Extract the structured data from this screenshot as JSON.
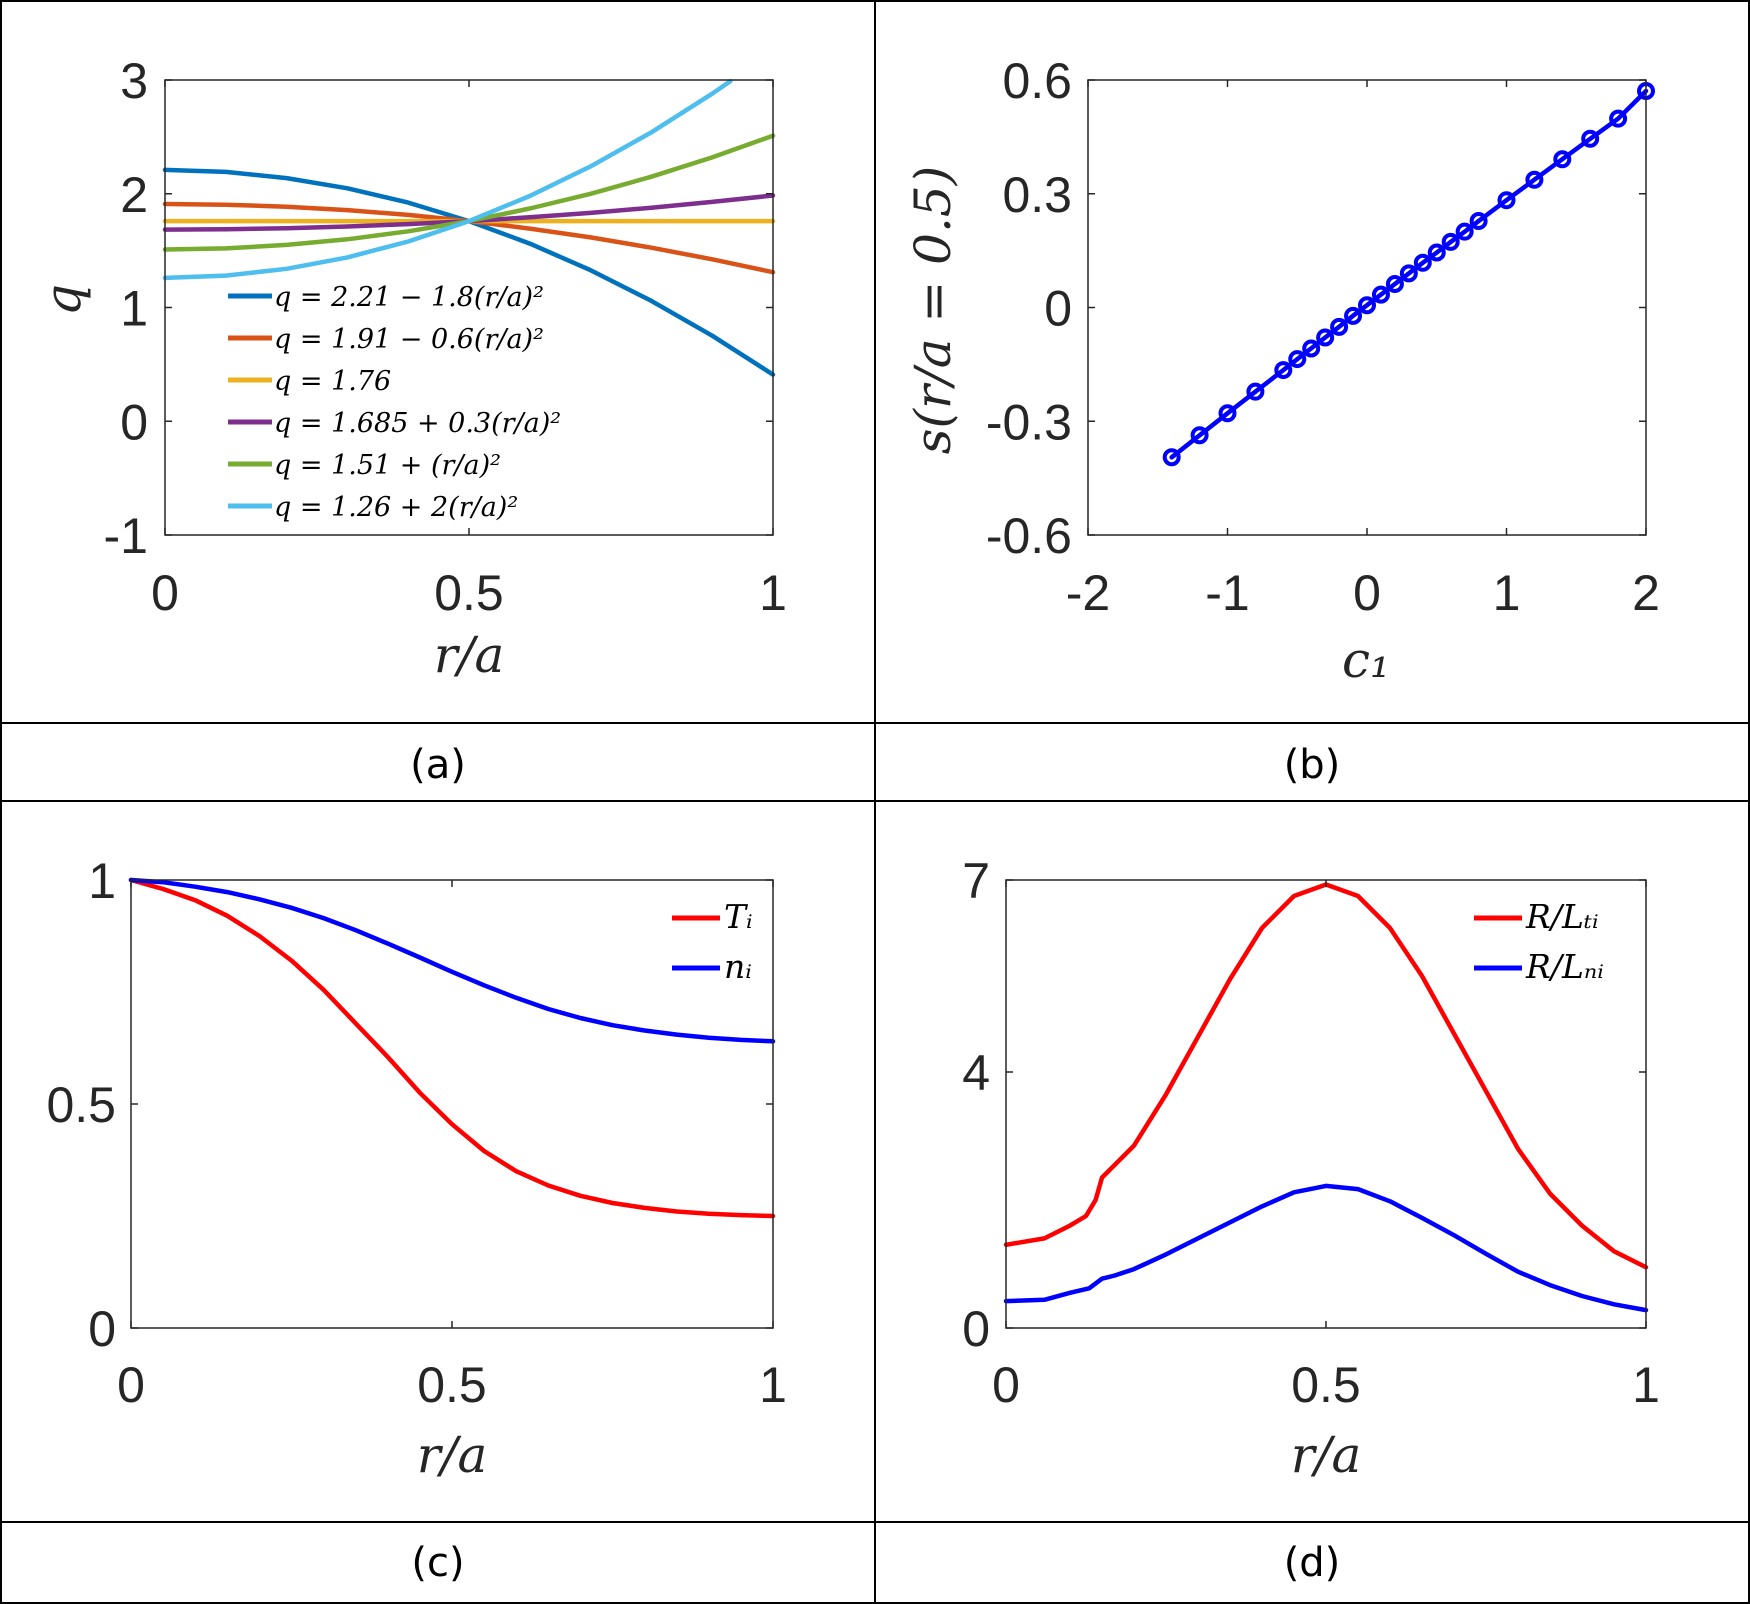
{
  "captions": [
    "(a)",
    "(b)",
    "(c)",
    "(d)"
  ],
  "chart_data": [
    {
      "type": "line",
      "xlabel": "r/a",
      "ylabel": "q",
      "xlim": [
        0,
        1
      ],
      "ylim": [
        -1,
        3
      ],
      "xticks": [
        "0",
        "0.5",
        "1"
      ],
      "yticks": [
        "-1",
        "0",
        "1",
        "2",
        "3"
      ],
      "legend_position": "bottom-left",
      "series": [
        {
          "name": "q = 2.21 − 1.8(r/a)²",
          "color": "#0072BD",
          "x": [
            0,
            0.1,
            0.2,
            0.3,
            0.4,
            0.5,
            0.6,
            0.7,
            0.8,
            0.9,
            1.0
          ],
          "y": [
            2.21,
            2.192,
            2.138,
            2.048,
            1.922,
            1.76,
            1.562,
            1.328,
            1.058,
            0.752,
            0.41
          ]
        },
        {
          "name": "q = 1.91 − 0.6(r/a)²",
          "color": "#D95319",
          "x": [
            0,
            0.1,
            0.2,
            0.3,
            0.4,
            0.5,
            0.6,
            0.7,
            0.8,
            0.9,
            1.0
          ],
          "y": [
            1.91,
            1.904,
            1.886,
            1.856,
            1.814,
            1.76,
            1.694,
            1.616,
            1.526,
            1.424,
            1.31
          ]
        },
        {
          "name": "q = 1.76",
          "color": "#EDB120",
          "x": [
            0,
            1.0
          ],
          "y": [
            1.76,
            1.76
          ]
        },
        {
          "name": "q = 1.685 + 0.3(r/a)²",
          "color": "#7E2F8E",
          "x": [
            0,
            0.1,
            0.2,
            0.3,
            0.4,
            0.5,
            0.6,
            0.7,
            0.8,
            0.9,
            1.0
          ],
          "y": [
            1.685,
            1.688,
            1.697,
            1.712,
            1.733,
            1.76,
            1.793,
            1.832,
            1.877,
            1.928,
            1.985
          ]
        },
        {
          "name": "q = 1.51 + (r/a)²",
          "color": "#77AC30",
          "x": [
            0,
            0.1,
            0.2,
            0.3,
            0.4,
            0.5,
            0.6,
            0.7,
            0.8,
            0.9,
            1.0
          ],
          "y": [
            1.51,
            1.52,
            1.55,
            1.6,
            1.67,
            1.76,
            1.87,
            2.0,
            2.15,
            2.32,
            2.51
          ]
        },
        {
          "name": "q = 1.26 + 2(r/a)²",
          "color": "#4DBEEE",
          "x": [
            0,
            0.1,
            0.2,
            0.3,
            0.4,
            0.5,
            0.6,
            0.7,
            0.8,
            0.9,
            0.93
          ],
          "y": [
            1.26,
            1.28,
            1.34,
            1.44,
            1.58,
            1.76,
            1.98,
            2.24,
            2.54,
            2.88,
            2.99
          ]
        }
      ]
    },
    {
      "type": "line",
      "xlabel": "c₁",
      "ylabel": "s(r/a = 0.5)",
      "xlim": [
        -2,
        2
      ],
      "ylim": [
        -0.6,
        0.6
      ],
      "xticks": [
        "-2",
        "-1",
        "0",
        "1",
        "2"
      ],
      "yticks": [
        "-0.6",
        "-0.3",
        "0",
        "0.3",
        "0.6"
      ],
      "series": [
        {
          "name": "",
          "color": "#0000FF",
          "marker": "circle",
          "x": [
            -1.4,
            -1.2,
            -1.0,
            -0.8,
            -0.6,
            -0.5,
            -0.4,
            -0.3,
            -0.2,
            -0.1,
            0.0,
            0.1,
            0.2,
            0.3,
            0.4,
            0.5,
            0.6,
            0.7,
            0.8,
            1.0,
            1.2,
            1.4,
            1.6,
            1.8,
            2.0
          ],
          "y": [
            -0.395,
            -0.337,
            -0.279,
            -0.222,
            -0.165,
            -0.136,
            -0.108,
            -0.079,
            -0.051,
            -0.022,
            0.006,
            0.034,
            0.062,
            0.09,
            0.118,
            0.145,
            0.173,
            0.2,
            0.228,
            0.283,
            0.337,
            0.391,
            0.445,
            0.498,
            0.571
          ]
        }
      ]
    },
    {
      "type": "line",
      "xlabel": "r/a",
      "ylabel": "",
      "xlim": [
        0,
        1
      ],
      "ylim": [
        0,
        1
      ],
      "xticks": [
        "0",
        "0.5",
        "1"
      ],
      "yticks": [
        "0",
        "0.5",
        "1"
      ],
      "legend_position": "top-right",
      "series": [
        {
          "name": "Tᵢ",
          "color": "#FF0000",
          "x": [
            0,
            0.05,
            0.1,
            0.15,
            0.2,
            0.25,
            0.3,
            0.35,
            0.4,
            0.45,
            0.5,
            0.55,
            0.6,
            0.65,
            0.7,
            0.75,
            0.8,
            0.85,
            0.9,
            0.95,
            1.0
          ],
          "y": [
            1.0,
            0.98,
            0.955,
            0.92,
            0.875,
            0.82,
            0.755,
            0.68,
            0.605,
            0.525,
            0.455,
            0.395,
            0.35,
            0.318,
            0.295,
            0.279,
            0.268,
            0.26,
            0.255,
            0.252,
            0.25
          ]
        },
        {
          "name": "nᵢ",
          "color": "#0000FF",
          "x": [
            0,
            0.05,
            0.1,
            0.15,
            0.2,
            0.25,
            0.3,
            0.35,
            0.4,
            0.45,
            0.5,
            0.55,
            0.6,
            0.65,
            0.7,
            0.75,
            0.8,
            0.85,
            0.9,
            0.95,
            1.0
          ],
          "y": [
            1.0,
            0.995,
            0.985,
            0.973,
            0.957,
            0.938,
            0.915,
            0.888,
            0.858,
            0.827,
            0.795,
            0.765,
            0.737,
            0.712,
            0.692,
            0.676,
            0.664,
            0.655,
            0.648,
            0.643,
            0.64
          ]
        }
      ]
    },
    {
      "type": "line",
      "xlabel": "r/a",
      "ylabel": "",
      "xlim": [
        0,
        1
      ],
      "ylim": [
        0,
        7
      ],
      "xticks": [
        "0",
        "0.5",
        "1"
      ],
      "yticks": [
        "0",
        "4",
        "7"
      ],
      "legend_position": "top-right",
      "series": [
        {
          "name": "R/Lₜᵢ",
          "color": "#FF0000",
          "x": [
            0,
            0.06,
            0.1,
            0.125,
            0.14,
            0.15,
            0.17,
            0.2,
            0.25,
            0.3,
            0.35,
            0.4,
            0.45,
            0.5,
            0.55,
            0.6,
            0.65,
            0.7,
            0.75,
            0.8,
            0.85,
            0.9,
            0.95,
            1.0
          ],
          "y": [
            1.3,
            1.4,
            1.6,
            1.75,
            2.0,
            2.35,
            2.55,
            2.85,
            3.65,
            4.55,
            5.45,
            6.25,
            6.75,
            6.93,
            6.75,
            6.25,
            5.5,
            4.6,
            3.7,
            2.8,
            2.1,
            1.6,
            1.2,
            0.95
          ]
        },
        {
          "name": "R/Lₙᵢ",
          "color": "#0000FF",
          "x": [
            0,
            0.06,
            0.1,
            0.13,
            0.15,
            0.17,
            0.2,
            0.25,
            0.3,
            0.35,
            0.4,
            0.45,
            0.5,
            0.55,
            0.6,
            0.65,
            0.7,
            0.75,
            0.8,
            0.85,
            0.9,
            0.95,
            1.0
          ],
          "y": [
            0.42,
            0.44,
            0.55,
            0.62,
            0.77,
            0.82,
            0.92,
            1.15,
            1.4,
            1.65,
            1.9,
            2.12,
            2.22,
            2.17,
            1.98,
            1.72,
            1.45,
            1.16,
            0.88,
            0.67,
            0.5,
            0.37,
            0.28
          ]
        }
      ]
    }
  ]
}
